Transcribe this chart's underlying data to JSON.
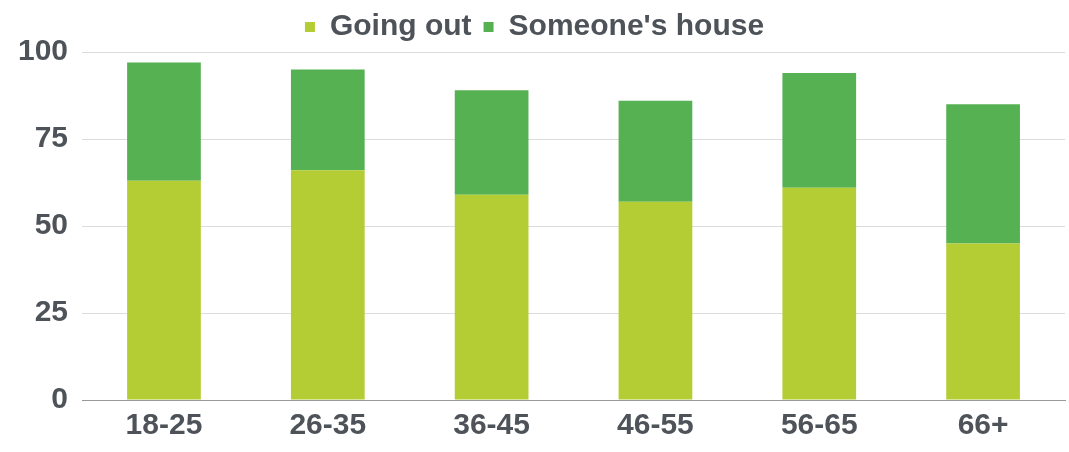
{
  "chart_data": {
    "type": "bar",
    "stacked": true,
    "categories": [
      "18-25",
      "26-35",
      "36-45",
      "46-55",
      "56-65",
      "66+"
    ],
    "series": [
      {
        "name": "Going out",
        "color": "#b5cd34",
        "values": [
          63,
          66,
          59,
          57,
          61,
          45
        ]
      },
      {
        "name": "Someone's house",
        "color": "#56b152",
        "values": [
          34,
          29,
          30,
          29,
          33,
          40
        ]
      }
    ],
    "ylim": [
      0,
      100
    ],
    "yticks": [
      0,
      25,
      50,
      75,
      100
    ],
    "grid": "y",
    "legend": "top"
  }
}
